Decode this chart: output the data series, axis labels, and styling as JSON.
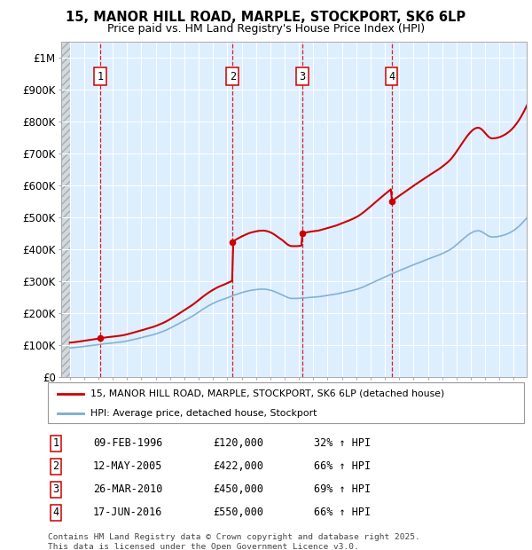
{
  "title": "15, MANOR HILL ROAD, MARPLE, STOCKPORT, SK6 6LP",
  "subtitle": "Price paid vs. HM Land Registry's House Price Index (HPI)",
  "ylim": [
    0,
    1050000
  ],
  "yticks": [
    0,
    100000,
    200000,
    300000,
    400000,
    500000,
    600000,
    700000,
    800000,
    900000,
    1000000
  ],
  "ytick_labels": [
    "£0",
    "£100K",
    "£200K",
    "£300K",
    "£400K",
    "£500K",
    "£600K",
    "£700K",
    "£800K",
    "£900K",
    "£1M"
  ],
  "sale_year_floats": [
    1996.107,
    2005.36,
    2010.23,
    2016.46
  ],
  "sale_prices": [
    120000,
    422000,
    450000,
    550000
  ],
  "sale_labels": [
    "1",
    "2",
    "3",
    "4"
  ],
  "sale_info": [
    {
      "label": "1",
      "date": "09-FEB-1996",
      "price": "£120,000",
      "hpi": "32% ↑ HPI"
    },
    {
      "label": "2",
      "date": "12-MAY-2005",
      "price": "£422,000",
      "hpi": "66% ↑ HPI"
    },
    {
      "label": "3",
      "date": "26-MAR-2010",
      "price": "£450,000",
      "hpi": "69% ↑ HPI"
    },
    {
      "label": "4",
      "date": "17-JUN-2016",
      "price": "£550,000",
      "hpi": "66% ↑ HPI"
    }
  ],
  "red_line_color": "#cc0000",
  "blue_line_color": "#7aabcf",
  "background_color": "#ddeeff",
  "legend_label_red": "15, MANOR HILL ROAD, MARPLE, STOCKPORT, SK6 6LP (detached house)",
  "legend_label_blue": "HPI: Average price, detached house, Stockport",
  "footer": "Contains HM Land Registry data © Crown copyright and database right 2025.\nThis data is licensed under the Open Government Licence v3.0.",
  "xstart": 1994.0,
  "xend": 2025.9
}
